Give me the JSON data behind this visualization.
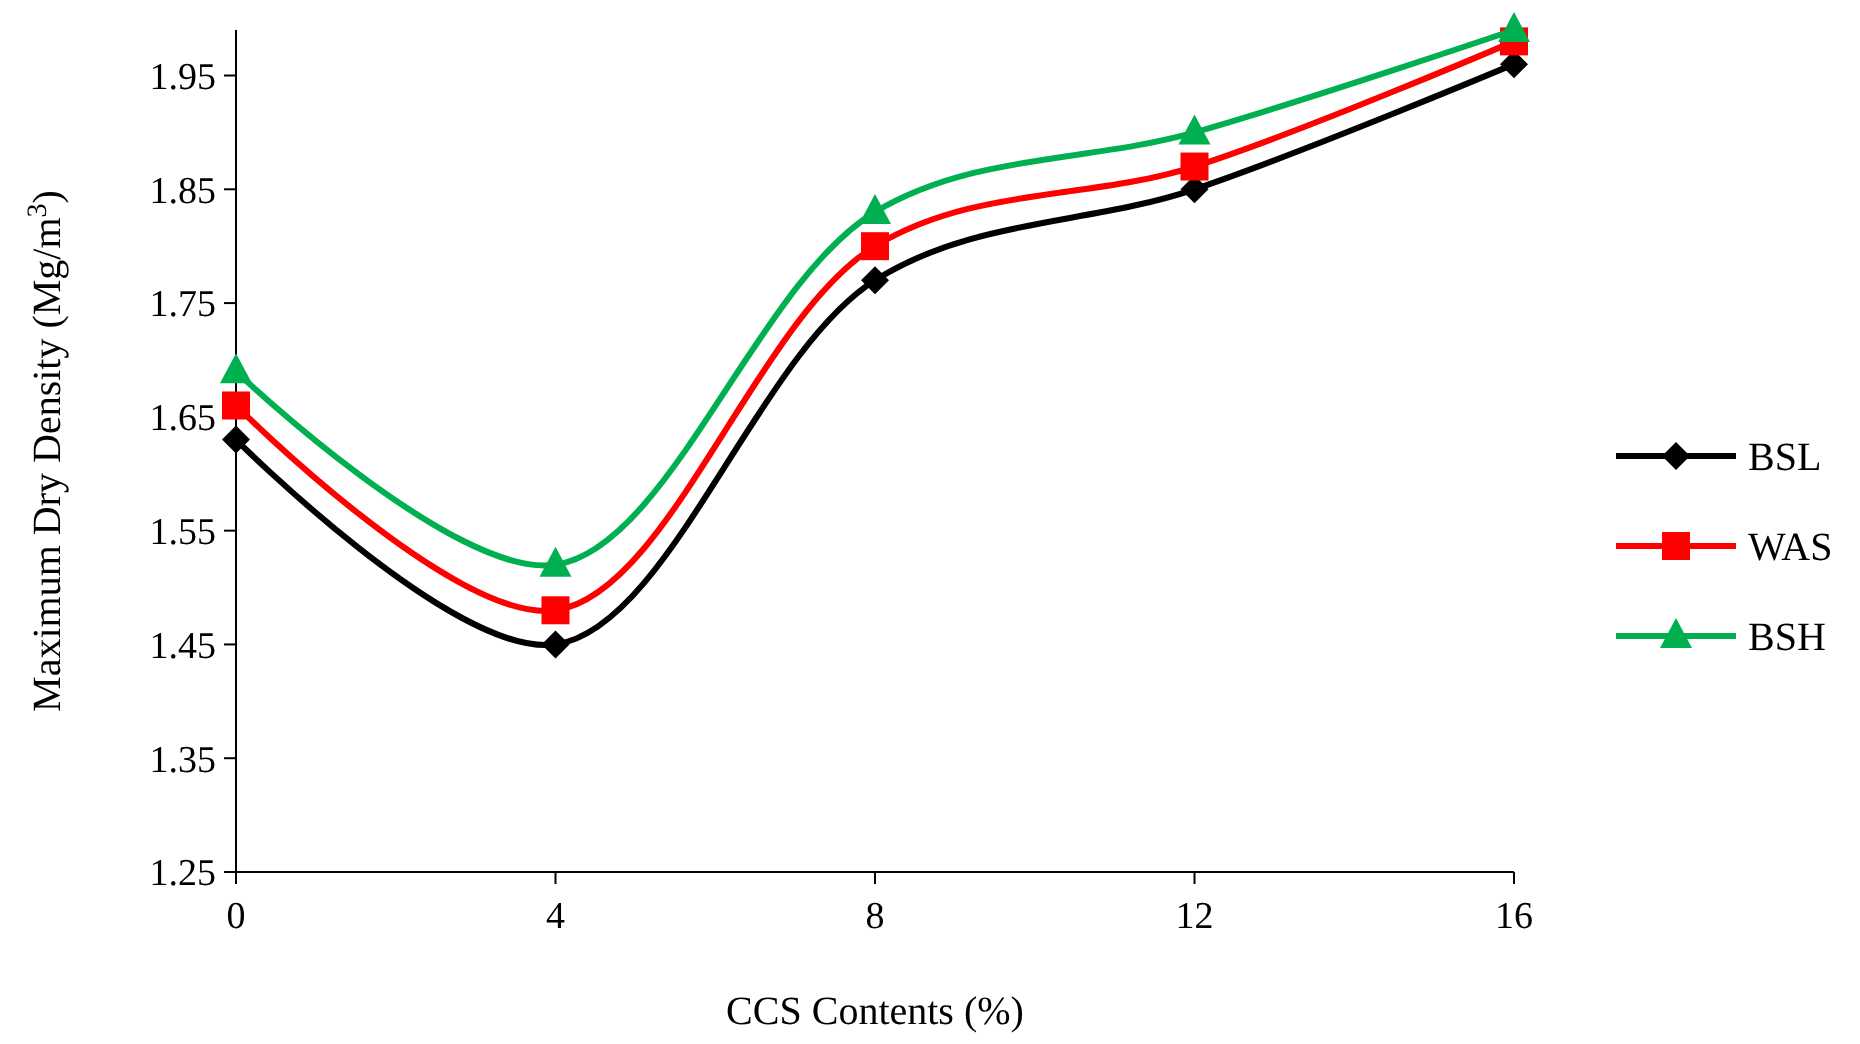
{
  "chart_data": {
    "type": "line",
    "xlabel": "CCS Contents (%)",
    "ylabel": "Maximum Dry Density  (Mg/m$^{3}$)",
    "x": [
      0,
      4,
      8,
      12,
      16
    ],
    "xlim": [
      0,
      16
    ],
    "xticks": [
      0,
      4,
      8,
      12,
      16
    ],
    "ylim": [
      1.25,
      1.99
    ],
    "yticks": [
      1.25,
      1.35,
      1.45,
      1.55,
      1.65,
      1.75,
      1.85,
      1.95
    ],
    "legend": "right",
    "grid": false,
    "line_style": "solid",
    "series": [
      {
        "name": "BSL",
        "color": "#000000",
        "marker": "diamond",
        "values": [
          1.63,
          1.45,
          1.77,
          1.85,
          1.96
        ]
      },
      {
        "name": "WAS",
        "color": "#ff0000",
        "marker": "square",
        "values": [
          1.66,
          1.48,
          1.8,
          1.87,
          1.98
        ]
      },
      {
        "name": "BSH",
        "color": "#00b050",
        "marker": "triangle",
        "values": [
          1.69,
          1.52,
          1.83,
          1.9,
          1.99
        ]
      }
    ]
  }
}
